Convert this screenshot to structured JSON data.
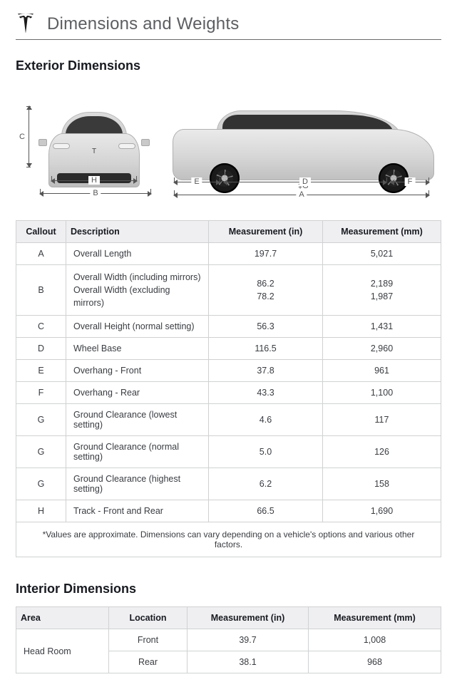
{
  "header": {
    "title": "Dimensions and Weights"
  },
  "sections": {
    "exterior_title": "Exterior Dimensions",
    "interior_title": "Interior Dimensions"
  },
  "diagram_labels": {
    "C": "C",
    "H": "H",
    "B": "B",
    "E": "E",
    "D": "D",
    "F": "F",
    "A": "A",
    "G_marker": "‡G"
  },
  "exterior_table": {
    "columns": [
      "Callout",
      "Description",
      "Measurement (in)",
      "Measurement (mm)"
    ],
    "rows": [
      {
        "callout": "A",
        "desc": "Overall Length",
        "in": "197.7",
        "mm": "5,021"
      },
      {
        "callout": "B",
        "desc": "Overall Width (including mirrors)\nOverall Width (excluding mirrors)",
        "in": "86.2\n78.2",
        "mm": "2,189\n1,987"
      },
      {
        "callout": "C",
        "desc": "Overall Height (normal setting)",
        "in": "56.3",
        "mm": "1,431"
      },
      {
        "callout": "D",
        "desc": "Wheel Base",
        "in": "116.5",
        "mm": "2,960"
      },
      {
        "callout": "E",
        "desc": "Overhang - Front",
        "in": "37.8",
        "mm": "961"
      },
      {
        "callout": "F",
        "desc": "Overhang - Rear",
        "in": "43.3",
        "mm": "1,100"
      },
      {
        "callout": "G",
        "desc": "Ground Clearance (lowest setting)",
        "in": "4.6",
        "mm": "117"
      },
      {
        "callout": "G",
        "desc": "Ground Clearance (normal setting)",
        "in": "5.0",
        "mm": "126"
      },
      {
        "callout": "G",
        "desc": "Ground Clearance (highest setting)",
        "in": "6.2",
        "mm": "158"
      },
      {
        "callout": "H",
        "desc": "Track - Front and Rear",
        "in": "66.5",
        "mm": "1,690"
      }
    ],
    "footnote": "*Values are approximate. Dimensions can vary depending on a vehicle's options and various other factors."
  },
  "interior_table": {
    "columns": [
      "Area",
      "Location",
      "Measurement (in)",
      "Measurement (mm)"
    ],
    "rows": [
      {
        "area": "Head Room",
        "location": "Front",
        "in": "39.7",
        "mm": "1,008",
        "rowspan_area": 2
      },
      {
        "area": "",
        "location": "Rear",
        "in": "38.1",
        "mm": "968"
      }
    ]
  },
  "colors": {
    "border": "#d0d1d2",
    "header_bg": "#efeff1",
    "text": "#393c41",
    "title": "#171a20",
    "line": "#555555"
  }
}
